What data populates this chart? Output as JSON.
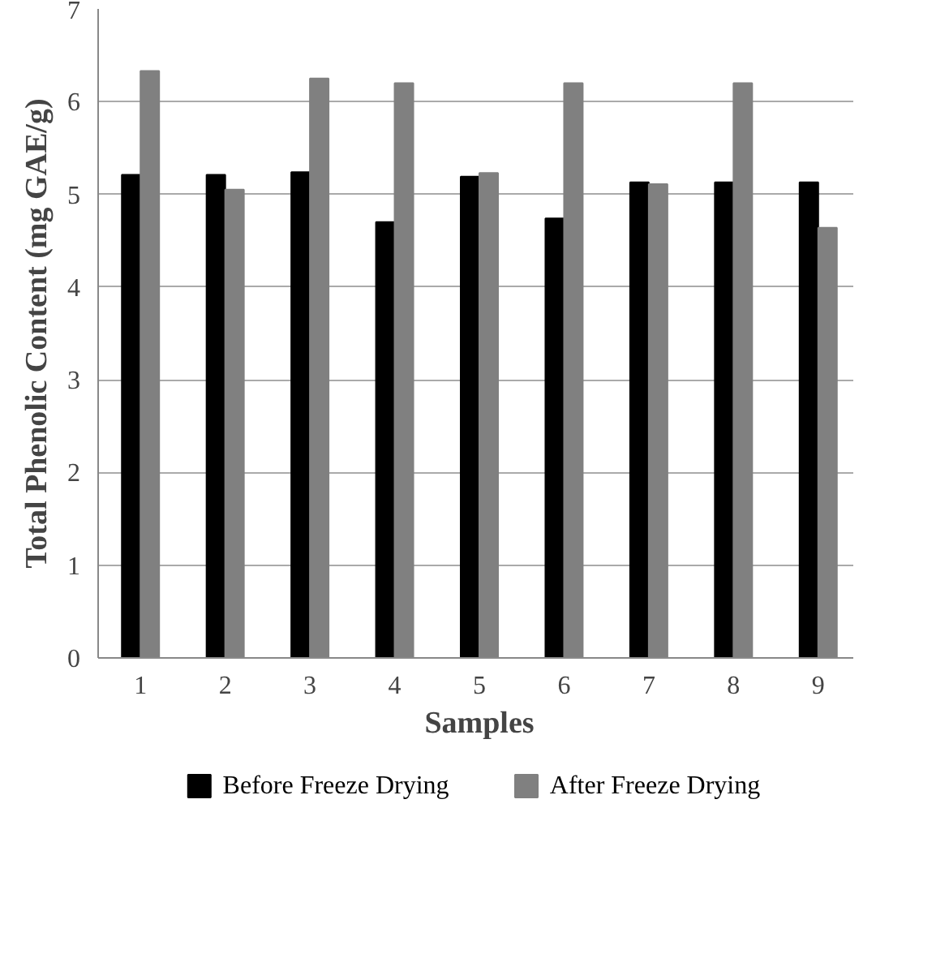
{
  "chart_data": {
    "type": "bar",
    "xlabel": "Samples",
    "ylabel": "Total Phenolic Content (mg GAE/g)",
    "categories": [
      "1",
      "2",
      "3",
      "4",
      "5",
      "6",
      "7",
      "8",
      "9"
    ],
    "series": [
      {
        "name": "Before Freeze Drying",
        "color": "#000000",
        "values": [
          5.21,
          5.21,
          5.24,
          4.7,
          5.19,
          4.74,
          5.13,
          5.13,
          5.13
        ]
      },
      {
        "name": "After Freeze Drying",
        "color": "#808080",
        "values": [
          6.33,
          5.05,
          6.25,
          6.2,
          5.23,
          6.2,
          5.11,
          6.2,
          4.64
        ]
      }
    ],
    "ylim": [
      0,
      7
    ],
    "yticks": [
      0,
      1,
      2,
      3,
      4,
      5,
      6,
      7
    ],
    "grid": "y",
    "legend": "bottom"
  }
}
